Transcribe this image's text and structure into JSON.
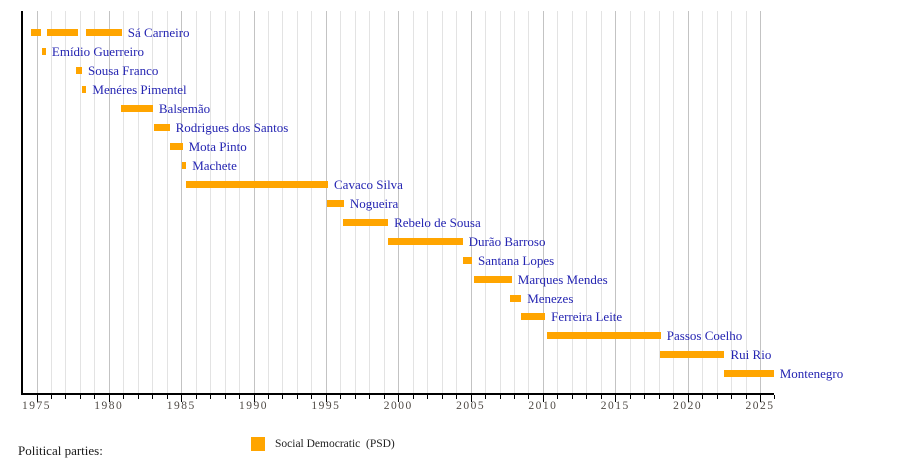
{
  "chart_data": {
    "type": "bar",
    "subtype": "gantt-timeline",
    "title": "",
    "xlabel": "",
    "ylabel": "",
    "description": "Timeline of Social Democratic Party (PSD) leaders with orange bars for each tenure",
    "x_axis": {
      "min": 1974.07,
      "max": 2025.97,
      "major_ticks": [
        1975,
        1980,
        1985,
        1990,
        1995,
        2000,
        2005,
        2010,
        2015,
        2020,
        2025
      ],
      "minor_tick_interval": 1,
      "grid": true
    },
    "bar_color": "#FFA500",
    "series": [
      {
        "name": "Sá Carneiro",
        "terms": [
          [
            1974.6,
            1975.3
          ],
          [
            1975.7,
            1977.85
          ],
          [
            1978.45,
            1980.9
          ]
        ]
      },
      {
        "name": "Emídio Guerreiro",
        "terms": [
          [
            1975.35,
            1975.65
          ]
        ]
      },
      {
        "name": "Sousa Franco",
        "terms": [
          [
            1977.75,
            1978.15
          ]
        ]
      },
      {
        "name": "Menéres Pimentel",
        "terms": [
          [
            1978.15,
            1978.45
          ]
        ]
      },
      {
        "name": "Balsemão",
        "terms": [
          [
            1980.85,
            1983.05
          ]
        ]
      },
      {
        "name": "Rodrigues dos Santos",
        "terms": [
          [
            1983.15,
            1984.2
          ]
        ]
      },
      {
        "name": "Mota Pinto",
        "terms": [
          [
            1984.2,
            1985.1
          ]
        ]
      },
      {
        "name": "Machete",
        "terms": [
          [
            1985.05,
            1985.35
          ]
        ]
      },
      {
        "name": "Cavaco Silva",
        "terms": [
          [
            1985.3,
            1995.15
          ]
        ]
      },
      {
        "name": "Nogueira",
        "terms": [
          [
            1995.1,
            1996.25
          ]
        ]
      },
      {
        "name": "Rebelo de Sousa",
        "terms": [
          [
            1996.2,
            1999.3
          ]
        ]
      },
      {
        "name": "Durão Barroso",
        "terms": [
          [
            1999.3,
            2004.45
          ]
        ]
      },
      {
        "name": "Santana Lopes",
        "terms": [
          [
            2004.45,
            2005.1
          ]
        ]
      },
      {
        "name": "Marques Mendes",
        "terms": [
          [
            2005.25,
            2007.85
          ]
        ]
      },
      {
        "name": "Menezes",
        "terms": [
          [
            2007.75,
            2008.5
          ]
        ]
      },
      {
        "name": "Ferreira Leite",
        "terms": [
          [
            2008.5,
            2010.15
          ]
        ]
      },
      {
        "name": "Passos Coelho",
        "terms": [
          [
            2010.25,
            2018.15
          ]
        ]
      },
      {
        "name": "Rui Rio",
        "terms": [
          [
            2018.1,
            2022.55
          ]
        ]
      },
      {
        "name": "Montenegro",
        "terms": [
          [
            2022.5,
            2025.95
          ]
        ]
      }
    ],
    "legend_position": "bottom"
  },
  "legend": {
    "heading": "Political parties:",
    "items": [
      {
        "label": "Social Democratic  (PSD)",
        "color": "#FFA500"
      }
    ]
  },
  "colors": {
    "bar": "#FFA500",
    "leader_text": "#2525B2",
    "axis": "#000000",
    "grid_minor": "#e3e3e3",
    "grid_major": "#c3c3c3",
    "tick_text": "#4f4a45"
  }
}
